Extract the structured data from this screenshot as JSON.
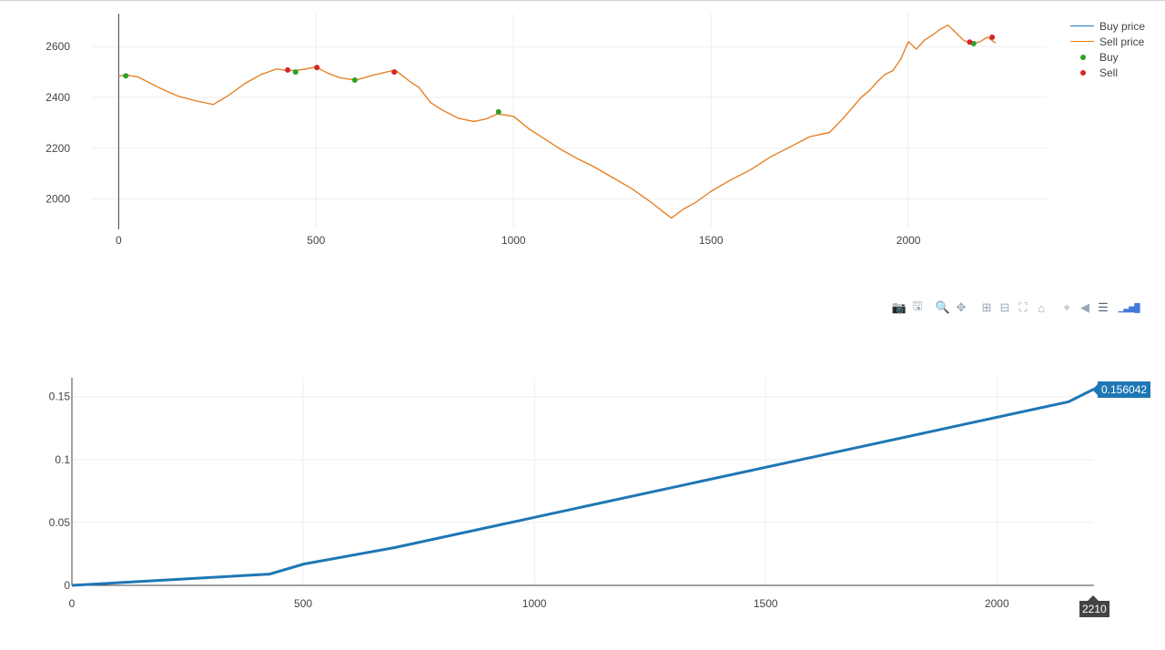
{
  "chart_data": [
    {
      "type": "line",
      "title": "",
      "xlabel": "",
      "ylabel": "",
      "xlim": [
        -70,
        2350
      ],
      "ylim": [
        1880,
        2730
      ],
      "x_ticks": [
        "0",
        "500",
        "1000",
        "1500",
        "2000"
      ],
      "y_ticks": [
        "2000",
        "2200",
        "2400",
        "2600"
      ],
      "grid": true,
      "legend_position": "top-right",
      "series": [
        {
          "name": "Buy price",
          "color": "#1f77b4",
          "x": [
            0,
            20,
            50,
            100,
            150,
            200,
            240,
            280,
            320,
            360,
            400,
            430,
            460,
            500,
            530,
            560,
            600,
            650,
            700,
            740,
            760,
            790,
            820,
            860,
            900,
            930,
            960,
            1000,
            1040,
            1080,
            1120,
            1160,
            1200,
            1250,
            1300,
            1350,
            1380,
            1400,
            1430,
            1460,
            1500,
            1550,
            1600,
            1650,
            1700,
            1750,
            1800,
            1830,
            1850,
            1880,
            1900,
            1920,
            1940,
            1960,
            1980,
            2000,
            2020,
            2040,
            2060,
            2080,
            2100,
            2120,
            2140,
            2160,
            2180,
            2200,
            2220
          ],
          "values": [
            2485,
            2488,
            2480,
            2440,
            2405,
            2385,
            2372,
            2410,
            2455,
            2490,
            2512,
            2505,
            2508,
            2520,
            2495,
            2478,
            2468,
            2490,
            2508,
            2460,
            2440,
            2380,
            2350,
            2318,
            2305,
            2315,
            2335,
            2325,
            2275,
            2235,
            2195,
            2160,
            2130,
            2085,
            2040,
            1985,
            1948,
            1925,
            1960,
            1985,
            2030,
            2075,
            2115,
            2165,
            2205,
            2245,
            2262,
            2310,
            2345,
            2400,
            2425,
            2460,
            2490,
            2505,
            2550,
            2620,
            2590,
            2625,
            2645,
            2668,
            2685,
            2655,
            2625,
            2612,
            2618,
            2638,
            2615
          ]
        },
        {
          "name": "Sell price",
          "color": "#ff7f0e",
          "x": [
            0,
            20,
            50,
            100,
            150,
            200,
            240,
            280,
            320,
            360,
            400,
            430,
            460,
            500,
            530,
            560,
            600,
            650,
            700,
            740,
            760,
            790,
            820,
            860,
            900,
            930,
            960,
            1000,
            1040,
            1080,
            1120,
            1160,
            1200,
            1250,
            1300,
            1350,
            1380,
            1400,
            1430,
            1460,
            1500,
            1550,
            1600,
            1650,
            1700,
            1750,
            1800,
            1830,
            1850,
            1880,
            1900,
            1920,
            1940,
            1960,
            1980,
            2000,
            2020,
            2040,
            2060,
            2080,
            2100,
            2120,
            2140,
            2160,
            2180,
            2200,
            2220
          ],
          "values": [
            2485,
            2488,
            2480,
            2440,
            2405,
            2385,
            2372,
            2410,
            2455,
            2490,
            2512,
            2505,
            2508,
            2520,
            2495,
            2478,
            2468,
            2490,
            2508,
            2460,
            2440,
            2380,
            2350,
            2318,
            2305,
            2315,
            2335,
            2325,
            2275,
            2235,
            2195,
            2160,
            2130,
            2085,
            2040,
            1985,
            1948,
            1925,
            1960,
            1985,
            2030,
            2075,
            2115,
            2165,
            2205,
            2245,
            2262,
            2310,
            2345,
            2400,
            2425,
            2460,
            2490,
            2505,
            2550,
            2620,
            2590,
            2625,
            2645,
            2668,
            2685,
            2655,
            2625,
            2612,
            2618,
            2638,
            2615
          ]
        },
        {
          "name": "Buy",
          "mode": "markers",
          "color": "#2ca02c",
          "x": [
            18,
            448,
            598,
            962,
            2165
          ],
          "values": [
            2485,
            2500,
            2468,
            2343,
            2612
          ]
        },
        {
          "name": "Sell",
          "mode": "markers",
          "color": "#d62728",
          "x": [
            428,
            502,
            698,
            2155,
            2212
          ],
          "values": [
            2508,
            2518,
            2500,
            2618,
            2637
          ]
        }
      ]
    },
    {
      "type": "line",
      "title": "",
      "xlabel": "",
      "ylabel": "",
      "xlim": [
        0,
        2210
      ],
      "ylim": [
        0,
        0.165
      ],
      "x_ticks": [
        "0",
        "500",
        "1000",
        "1500",
        "2000"
      ],
      "y_ticks": [
        "0",
        "0.05",
        "0.1",
        "0.15"
      ],
      "grid": true,
      "series": [
        {
          "color": "#1f77b4",
          "x": [
            0,
            428,
            502,
            698,
            2155,
            2210
          ],
          "values": [
            0,
            0.009,
            0.017,
            0.03,
            0.146,
            0.156042
          ]
        }
      ],
      "hover": {
        "x_label": "2210",
        "y_label": "0.156042"
      }
    }
  ],
  "legend": [
    {
      "label": "Buy price",
      "kind": "line",
      "color": "#1f77b4"
    },
    {
      "label": "Sell price",
      "kind": "line",
      "color": "#ff7f0e"
    },
    {
      "label": "Buy",
      "kind": "marker",
      "color": "#2ca02c"
    },
    {
      "label": "Sell",
      "kind": "marker",
      "color": "#d62728"
    }
  ],
  "modebar": {
    "buttons": [
      {
        "icon": "camera-icon",
        "glyph": "📷"
      },
      {
        "icon": "save-icon",
        "glyph": "🖫"
      },
      {
        "icon": "zoom-icon",
        "glyph": "🔍"
      },
      {
        "icon": "pan-icon",
        "glyph": "✥"
      },
      {
        "icon": "zoom-in-icon",
        "glyph": "⊞"
      },
      {
        "icon": "zoom-out-icon",
        "glyph": "⊟"
      },
      {
        "icon": "autoscale-icon",
        "glyph": "⛶"
      },
      {
        "icon": "reset-axes-icon",
        "glyph": "⌂"
      },
      {
        "icon": "spike-lines-icon",
        "glyph": "⌖"
      },
      {
        "icon": "hover-closest-icon",
        "glyph": "◀"
      },
      {
        "icon": "hover-compare-icon",
        "glyph": "☰"
      },
      {
        "icon": "plotly-logo-icon",
        "glyph": "▁▃▅█"
      }
    ]
  }
}
